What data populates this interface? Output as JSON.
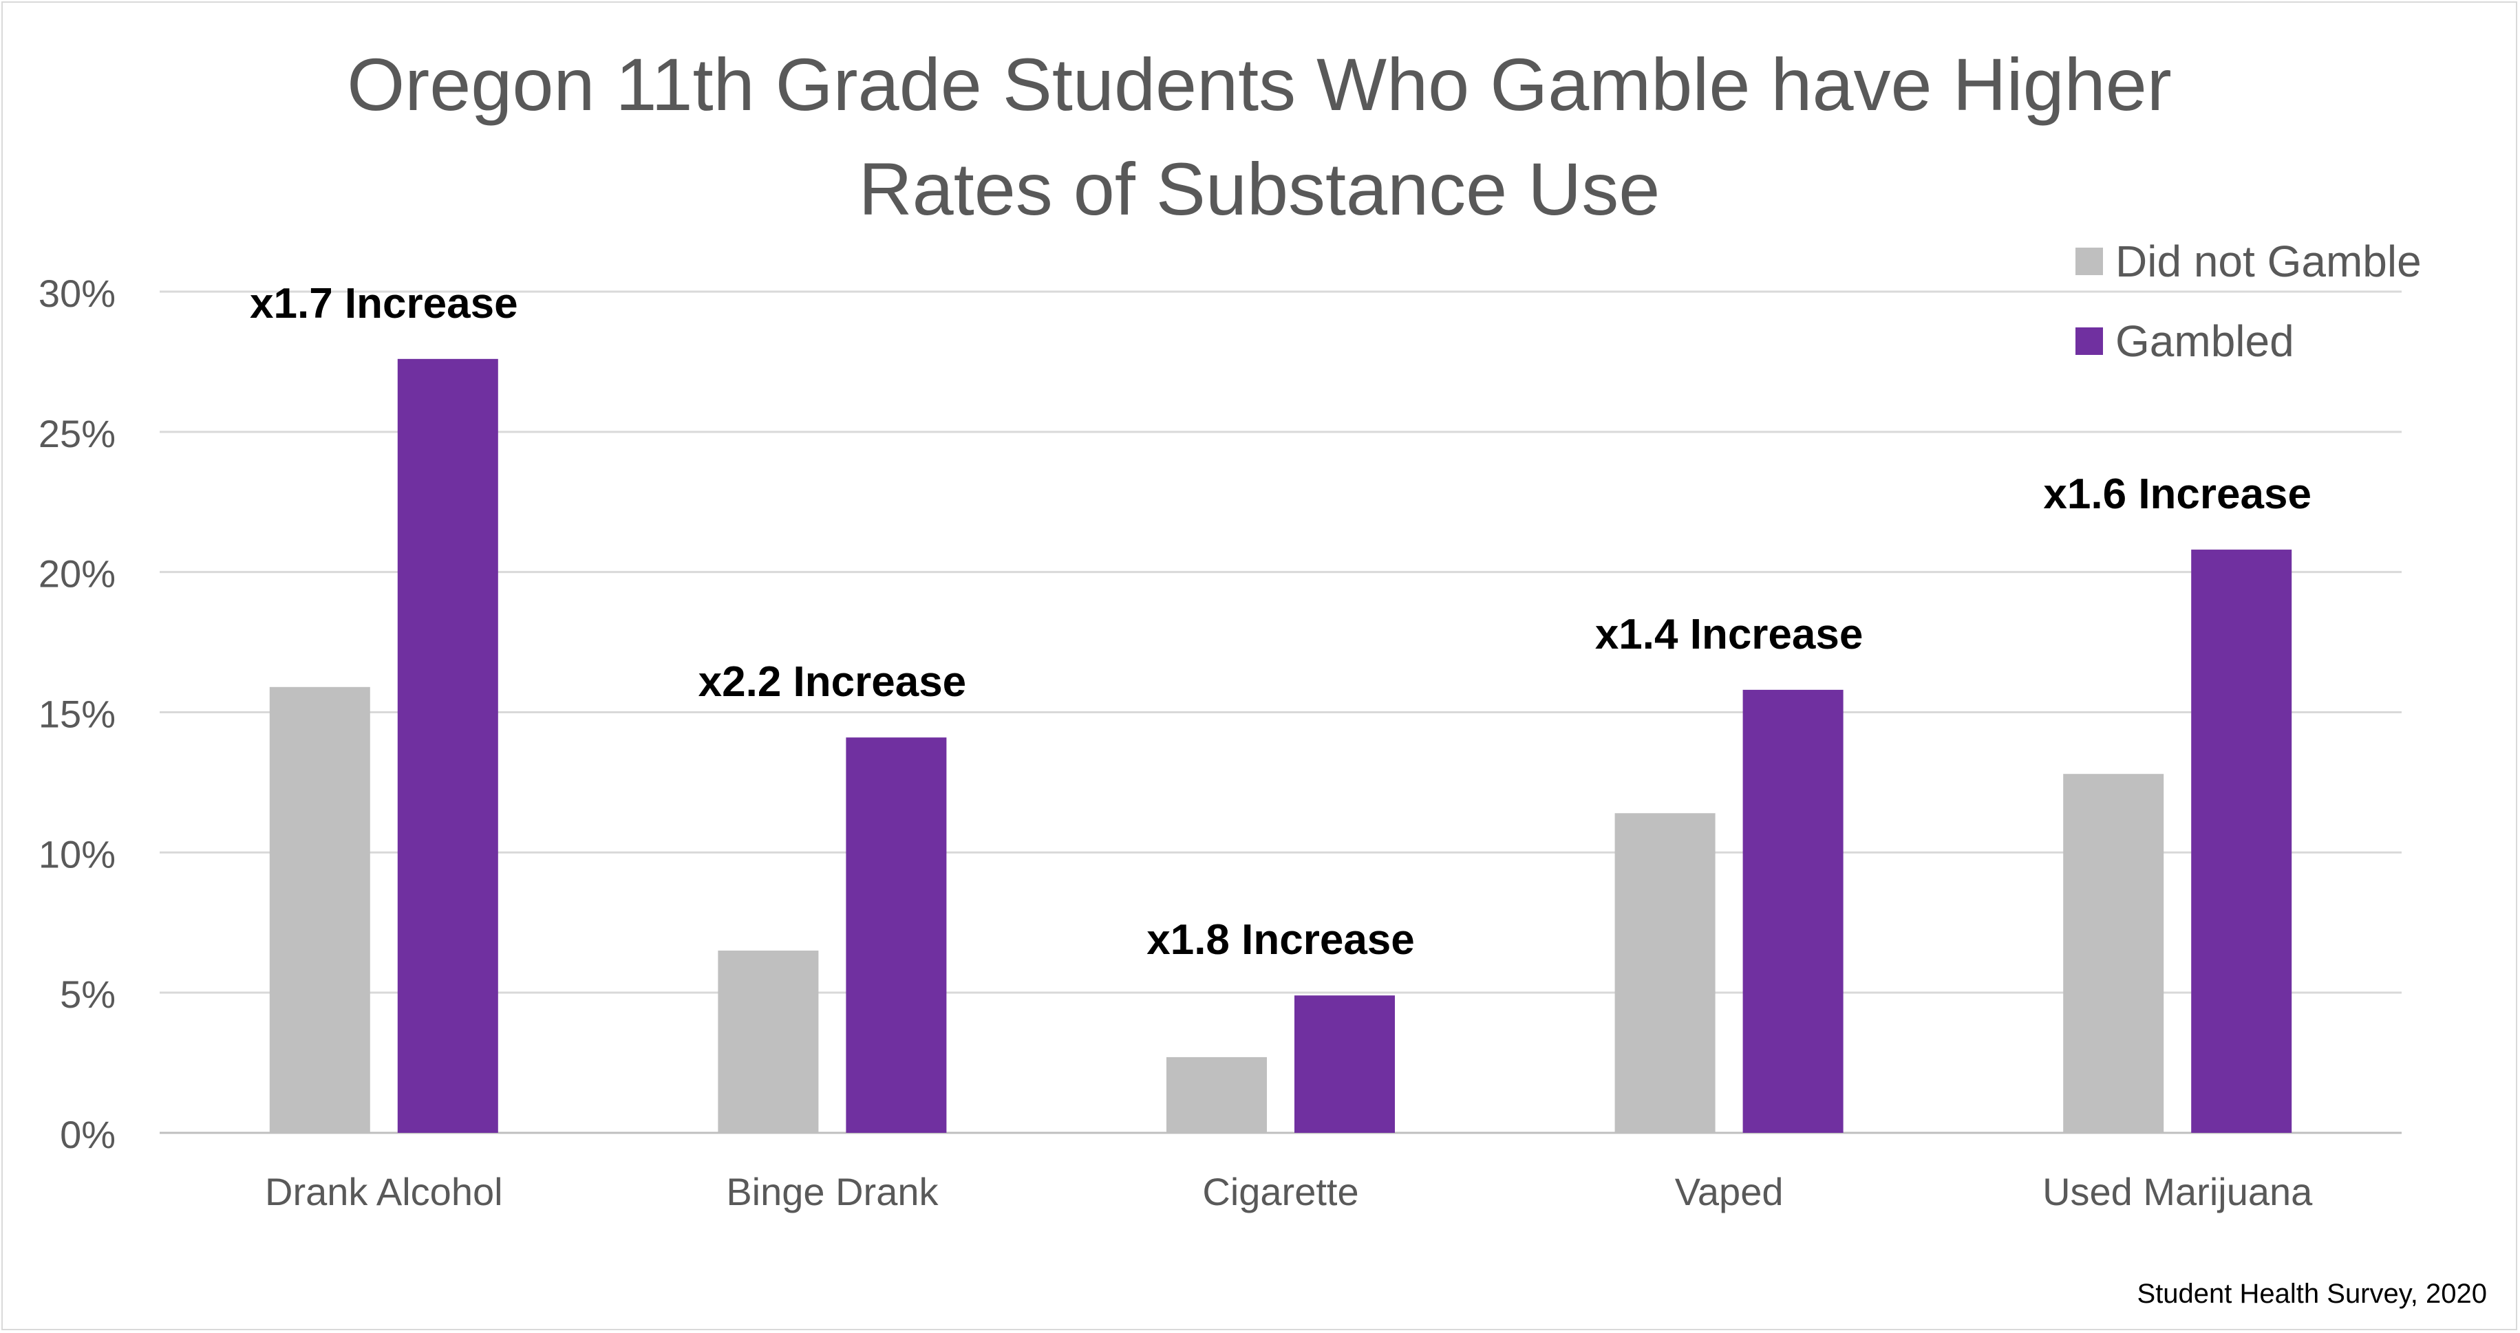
{
  "chart_data": {
    "type": "bar",
    "title_lines": [
      "Oregon 11th Grade Students Who Gamble have Higher",
      "Rates of Substance Use"
    ],
    "categories": [
      "Drank Alcohol",
      "Binge Drank",
      "Cigarette",
      "Vaped",
      "Used Marijuana"
    ],
    "series": [
      {
        "name": "Did not Gamble",
        "color": "#bfbfbf",
        "values": [
          15.9,
          6.5,
          2.7,
          11.4,
          12.8
        ]
      },
      {
        "name": "Gambled",
        "color": "#7030a0",
        "values": [
          27.6,
          14.1,
          4.9,
          15.8,
          20.8
        ]
      }
    ],
    "annotations": [
      "x1.7 Increase",
      "x2.2 Increase",
      "x1.8 Increase",
      "x1.4 Increase",
      "x1.6 Increase"
    ],
    "y_ticks": [
      "0%",
      "5%",
      "10%",
      "15%",
      "20%",
      "25%",
      "30%"
    ],
    "ylim": [
      0,
      30
    ],
    "grid": true,
    "legend_position": "top-right",
    "source": "Student Health Survey, 2020"
  }
}
